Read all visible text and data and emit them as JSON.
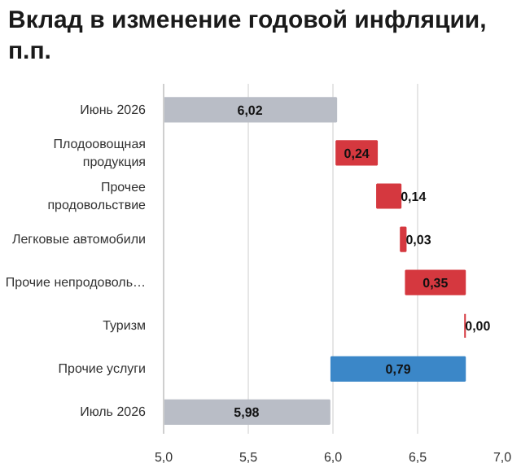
{
  "chart_data": {
    "type": "bar",
    "orientation": "horizontal",
    "title": "Вклад в изменение годовой инфляции, п.п.",
    "categories": [
      "Июнь 2026",
      "Плодоовощная продукция",
      "Прочее продовольствие",
      "Легковые автомобили",
      "Прочие непродоволь…",
      "Туризм",
      "Прочие услуги",
      "Июль 2026"
    ],
    "values": [
      6.02,
      0.24,
      0.14,
      0.03,
      0.35,
      0.0,
      -0.79,
      5.98
    ],
    "base": [
      null,
      6.02,
      6.26,
      6.4,
      6.43,
      6.78,
      6.78,
      null
    ],
    "colors": [
      "#b9bdc6",
      "#d5383f",
      "#d5383f",
      "#d5383f",
      "#d5383f",
      "#d5383f",
      "#3b87c8",
      "#b9bdc6"
    ],
    "value_labels": [
      "6,02",
      "0,24",
      "0,14",
      "0,03",
      "0,35",
      "0,00",
      "0,79",
      "5,98"
    ],
    "xlim": [
      5.0,
      7.0
    ],
    "xticks": [
      {
        "value": 5.0,
        "label": "5,0"
      },
      {
        "value": 5.5,
        "label": "5,5"
      },
      {
        "value": 6.0,
        "label": "6,0"
      },
      {
        "value": 6.5,
        "label": "6,5"
      },
      {
        "value": 7.0,
        "label": "7,0"
      }
    ],
    "grid": "x"
  }
}
